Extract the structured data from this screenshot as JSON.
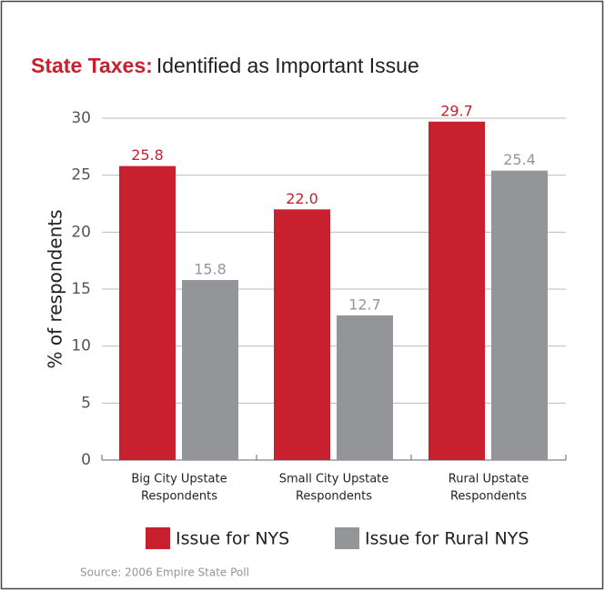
{
  "chart_data": {
    "type": "bar",
    "title_lead": "State Taxes:",
    "title": "Identified as Important Issue",
    "y_label": "% of respondents",
    "source": "Source:  2006 Empire State Poll",
    "categories": [
      [
        "Big City Upstate",
        "Respondents"
      ],
      [
        "Small City Upstate",
        "Respondents"
      ],
      [
        "Rural Upstate",
        "Respondents"
      ]
    ],
    "series": [
      {
        "name": "Issue for NYS",
        "color": "#c8202f",
        "values": [
          25.8,
          22.0,
          29.7
        ],
        "value_labels": [
          "25.8",
          "22.0",
          "29.7"
        ]
      },
      {
        "name": "Issue for Rural NYS",
        "color": "#939598",
        "values": [
          15.8,
          12.7,
          25.4
        ],
        "value_labels": [
          "15.8",
          "12.7",
          "25.4"
        ]
      }
    ],
    "ylim": [
      0,
      30
    ],
    "yticks": [
      0,
      5,
      10,
      15,
      20,
      25,
      30
    ],
    "grid": true,
    "legend": "bottom"
  }
}
